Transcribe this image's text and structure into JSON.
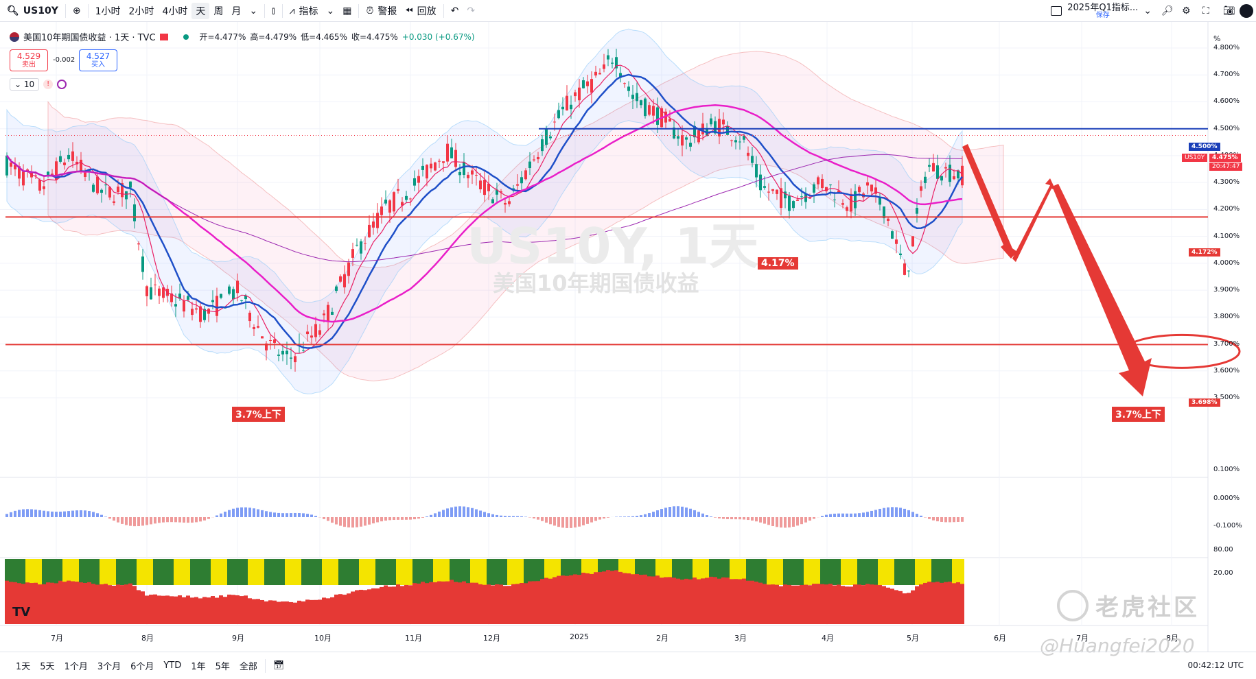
{
  "topbar": {
    "symbol": "US10Y",
    "intervals": [
      "1小时",
      "2小时",
      "4小时",
      "天",
      "周",
      "月"
    ],
    "active_interval": "天",
    "indicators_label": "指标",
    "alerts_label": "警报",
    "replay_label": "回放",
    "layout_name": "2025年Q1指标...",
    "layout_status": "保存"
  },
  "legend": {
    "title": "美国10年期国债收益 · 1天 · TVC",
    "open": "开=4.477%",
    "high": "高=4.479%",
    "low": "低=4.465%",
    "close": "收=4.475%",
    "change": "+0.030 (+0.67%)"
  },
  "sell": {
    "price": "4.529",
    "label": "卖出"
  },
  "spread": "-0.002",
  "buy": {
    "price": "4.527",
    "label": "买入"
  },
  "indicator_count": "10",
  "price_axis": {
    "unit": "%",
    "ticks": [
      "4.800%",
      "4.700%",
      "4.600%",
      "4.500%",
      "4.400%",
      "4.300%",
      "4.200%",
      "4.100%",
      "4.000%",
      "3.900%",
      "3.800%",
      "3.700%",
      "3.600%",
      "3.500%"
    ],
    "tag_resistance": "4.500%",
    "tag_last_symbol": "US10Y",
    "tag_last_price": "4.475%",
    "tag_last_time": "20:47:47",
    "tag_support1": "4.172%",
    "tag_support2": "3.698%"
  },
  "macd_axis": [
    "0.100%",
    "0.000%",
    "-0.100%"
  ],
  "stoch_axis": [
    "80.00",
    "20.00"
  ],
  "time_axis": [
    "7月",
    "8月",
    "9月",
    "10月",
    "11月",
    "12月",
    "2025",
    "2月",
    "3月",
    "4月",
    "5月",
    "6月",
    "7月",
    "8月"
  ],
  "annotations": {
    "support_mid": "4.17%",
    "support_low_left": "3.7%上下",
    "support_low_right": "3.7%上下"
  },
  "watermark": {
    "symbol": "US10Y, 1天",
    "name": "美国10年期国债收益"
  },
  "overlay": {
    "brand": "老虎社区",
    "user": "@Huangfei2020"
  },
  "bottombar": {
    "ranges": [
      "1天",
      "5天",
      "1个月",
      "3个月",
      "6个月",
      "YTD",
      "1年",
      "5年",
      "全部"
    ],
    "utc_time": "00:42:12 UTC"
  },
  "colors": {
    "up": "#089981",
    "down": "#f23645",
    "ma_blue": "#1e4fc8",
    "ma_magenta": "#e91ec8",
    "level_red": "#e53935",
    "level_blue": "#1a3fb8"
  }
}
